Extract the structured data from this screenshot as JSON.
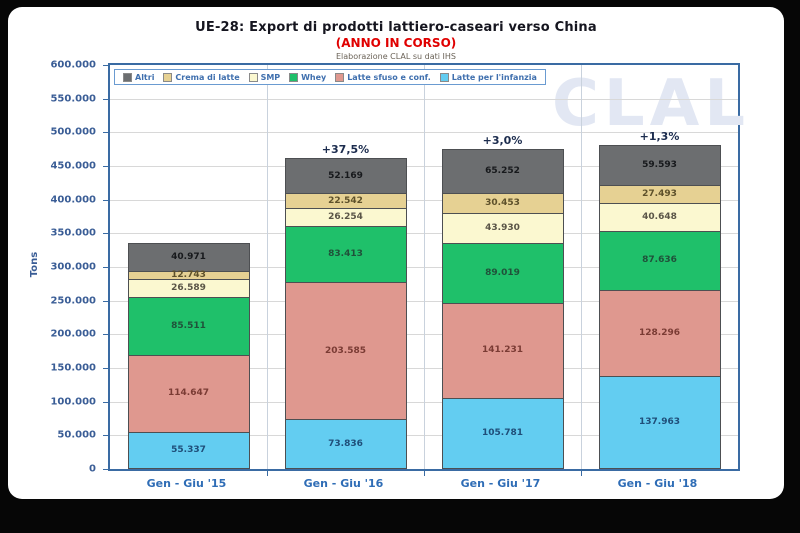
{
  "watermark": "CLAL",
  "chart_data": {
    "type": "bar",
    "stacked": true,
    "title": "UE-28: Export di prodotti lattiero-caseari verso China",
    "subtitle": "(ANNO IN CORSO)",
    "source_note": "Elaborazione CLAL su dati IHS",
    "ylabel": "Tons",
    "ylim": [
      0,
      600000
    ],
    "grid": "horizontal",
    "legend_position": "top",
    "yticks": [
      {
        "value": 0,
        "label": "0"
      },
      {
        "value": 50000,
        "label": "50.000"
      },
      {
        "value": 100000,
        "label": "100.000"
      },
      {
        "value": 150000,
        "label": "150.000"
      },
      {
        "value": 200000,
        "label": "200.000"
      },
      {
        "value": 250000,
        "label": "250.000"
      },
      {
        "value": 300000,
        "label": "300.000"
      },
      {
        "value": 350000,
        "label": "350.000"
      },
      {
        "value": 400000,
        "label": "400.000"
      },
      {
        "value": 450000,
        "label": "450.000"
      },
      {
        "value": 500000,
        "label": "500.000"
      },
      {
        "value": 550000,
        "label": "550.000"
      },
      {
        "value": 600000,
        "label": "600.000"
      }
    ],
    "categories": [
      "Gen - Giu '15",
      "Gen - Giu '16",
      "Gen - Giu '17",
      "Gen - Giu '18"
    ],
    "growth_labels": [
      "",
      "+37,5%",
      "+3,0%",
      "+1,3%"
    ],
    "series": [
      {
        "name": "Latte per l'infanzia",
        "color": "#63cdf1",
        "label_color": "#1f4e79",
        "values": [
          55337,
          73836,
          105781,
          137963
        ],
        "labels": [
          "55.337",
          "73.836",
          "105.781",
          "137.963"
        ]
      },
      {
        "name": "Latte sfuso e conf.",
        "color": "#df988f",
        "label_color": "#7a3b34",
        "values": [
          114647,
          203585,
          141231,
          128296
        ],
        "labels": [
          "114.647",
          "203.585",
          "141.231",
          "128.296"
        ]
      },
      {
        "name": "Whey",
        "color": "#1fc06a",
        "label_color": "#20513a",
        "values": [
          85511,
          83413,
          89019,
          87636
        ],
        "labels": [
          "85.511",
          "83.413",
          "89.019",
          "87.636"
        ]
      },
      {
        "name": "SMP",
        "color": "#fbf8d0",
        "label_color": "#5a5547",
        "values": [
          26589,
          26254,
          43930,
          40648
        ],
        "labels": [
          "26.589",
          "26.254",
          "43.930",
          "40.648"
        ]
      },
      {
        "name": "Crema di latte",
        "color": "#e6d193",
        "label_color": "#5e512b",
        "values": [
          12743,
          22542,
          30453,
          27493
        ],
        "labels": [
          "12.743",
          "22.542",
          "30.453",
          "27.493"
        ]
      },
      {
        "name": "Altri",
        "color": "#6c6e70",
        "label_color": "#17191c",
        "values": [
          40971,
          52169,
          65252,
          59593
        ],
        "labels": [
          "40.971",
          "52.169",
          "65.252",
          "59.593"
        ]
      }
    ]
  },
  "colors": {
    "background": "#060606",
    "card": "#ffffff",
    "plot_border": "#3a6ba3",
    "grid": "#d8d8d8",
    "axis_text": "#3a5d96",
    "x_label_text": "#2f6db6",
    "percent_label": "#1c2c4e",
    "title_text": "#15151f",
    "subtitle_red": "#e00000",
    "legend_border": "#6a9bd1",
    "legend_text": "#3f6fae",
    "watermark": "#e2e7f3"
  }
}
